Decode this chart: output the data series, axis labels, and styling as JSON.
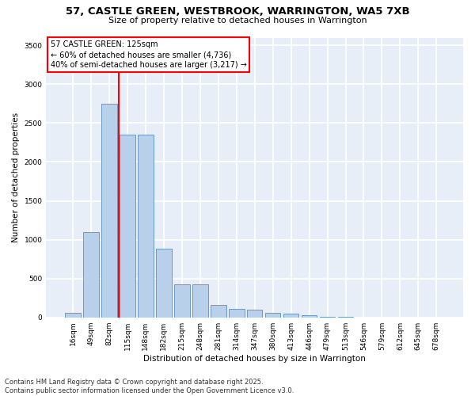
{
  "title_line1": "57, CASTLE GREEN, WESTBROOK, WARRINGTON, WA5 7XB",
  "title_line2": "Size of property relative to detached houses in Warrington",
  "xlabel": "Distribution of detached houses by size in Warrington",
  "ylabel": "Number of detached properties",
  "categories": [
    "16sqm",
    "49sqm",
    "82sqm",
    "115sqm",
    "148sqm",
    "182sqm",
    "215sqm",
    "248sqm",
    "281sqm",
    "314sqm",
    "347sqm",
    "380sqm",
    "413sqm",
    "446sqm",
    "479sqm",
    "513sqm",
    "546sqm",
    "579sqm",
    "612sqm",
    "645sqm",
    "678sqm"
  ],
  "values": [
    55,
    1100,
    2750,
    2350,
    2350,
    880,
    430,
    430,
    165,
    105,
    95,
    60,
    45,
    25,
    10,
    4,
    2,
    1,
    0,
    0,
    0
  ],
  "bar_color": "#b8d0ea",
  "bar_edge_color": "#5a8fbe",
  "vline_x_idx": 2.5,
  "vline_color": "red",
  "annotation_text": "57 CASTLE GREEN: 125sqm\n← 60% of detached houses are smaller (4,736)\n40% of semi-detached houses are larger (3,217) →",
  "annotation_box_color": "white",
  "annotation_box_edge": "red",
  "ylim": [
    0,
    3600
  ],
  "yticks": [
    0,
    500,
    1000,
    1500,
    2000,
    2500,
    3000,
    3500
  ],
  "background_color": "#e8eef8",
  "grid_color": "white",
  "footer_line1": "Contains HM Land Registry data © Crown copyright and database right 2025.",
  "footer_line2": "Contains public sector information licensed under the Open Government Licence v3.0.",
  "title_fontsize": 9.5,
  "subtitle_fontsize": 8,
  "axis_label_fontsize": 7.5,
  "tick_fontsize": 6.5,
  "annotation_fontsize": 7,
  "footer_fontsize": 6
}
